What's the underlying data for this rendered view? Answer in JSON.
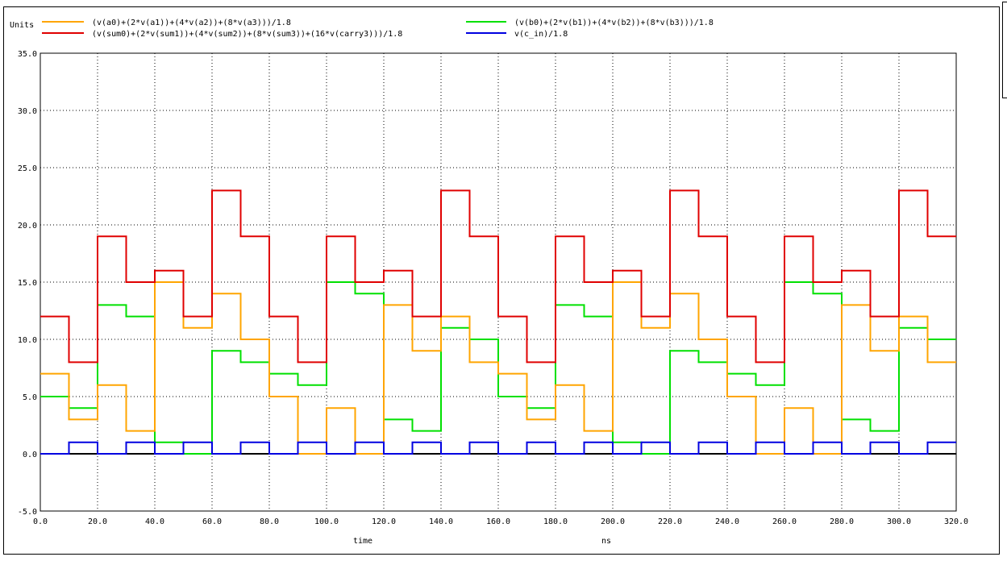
{
  "chart_data": {
    "type": "line",
    "ylabel": "Units",
    "xlabel": "time",
    "xunit": "ns",
    "xlim": [
      0,
      320
    ],
    "ylim": [
      -5,
      35
    ],
    "xticks": [
      0,
      20,
      40,
      60,
      80,
      100,
      120,
      140,
      160,
      180,
      200,
      220,
      240,
      260,
      280,
      300,
      320
    ],
    "xtick_labels": [
      "0.0",
      "20.0",
      "40.0",
      "60.0",
      "80.0",
      "100.0",
      "120.0",
      "140.0",
      "160.0",
      "180.0",
      "200.0",
      "220.0",
      "240.0",
      "260.0",
      "280.0",
      "300.0",
      "320.0"
    ],
    "yticks": [
      -5,
      0,
      5,
      10,
      15,
      20,
      25,
      30,
      35
    ],
    "ytick_labels": [
      "-5.0",
      "0.0",
      "5.0",
      "10.0",
      "15.0",
      "20.0",
      "25.0",
      "30.0",
      "35.0"
    ],
    "grid": true,
    "legend_position": "top",
    "series": [
      {
        "name": "(v(a0)+(2*v(a1))+(4*v(a2))+(8*v(a3)))/1.8",
        "color": "#ffa500",
        "steps": [
          [
            0,
            7
          ],
          [
            10,
            3
          ],
          [
            20,
            6
          ],
          [
            30,
            2
          ],
          [
            40,
            15
          ],
          [
            50,
            11
          ],
          [
            60,
            14
          ],
          [
            70,
            10
          ],
          [
            80,
            5
          ],
          [
            90,
            0
          ],
          [
            100,
            4
          ],
          [
            110,
            0
          ],
          [
            120,
            13
          ],
          [
            130,
            9
          ],
          [
            140,
            12
          ],
          [
            150,
            8
          ],
          [
            160,
            7
          ],
          [
            170,
            3
          ],
          [
            180,
            6
          ],
          [
            190,
            2
          ],
          [
            200,
            15
          ],
          [
            210,
            11
          ],
          [
            220,
            14
          ],
          [
            230,
            10
          ],
          [
            240,
            5
          ],
          [
            250,
            0
          ],
          [
            260,
            4
          ],
          [
            270,
            0
          ],
          [
            280,
            13
          ],
          [
            290,
            9
          ],
          [
            300,
            12
          ],
          [
            310,
            8
          ],
          [
            320,
            8
          ]
        ]
      },
      {
        "name": "(v(b0)+(2*v(b1))+(4*v(b2))+(8*v(b3)))/1.8",
        "color": "#00e000",
        "steps": [
          [
            0,
            5
          ],
          [
            10,
            4
          ],
          [
            20,
            13
          ],
          [
            30,
            12
          ],
          [
            40,
            1
          ],
          [
            50,
            0
          ],
          [
            60,
            9
          ],
          [
            70,
            8
          ],
          [
            80,
            7
          ],
          [
            90,
            6
          ],
          [
            100,
            15
          ],
          [
            110,
            14
          ],
          [
            120,
            3
          ],
          [
            130,
            2
          ],
          [
            140,
            11
          ],
          [
            150,
            10
          ],
          [
            160,
            5
          ],
          [
            170,
            4
          ],
          [
            180,
            13
          ],
          [
            190,
            12
          ],
          [
            200,
            1
          ],
          [
            210,
            0
          ],
          [
            220,
            9
          ],
          [
            230,
            8
          ],
          [
            240,
            7
          ],
          [
            250,
            6
          ],
          [
            260,
            15
          ],
          [
            270,
            14
          ],
          [
            280,
            3
          ],
          [
            290,
            2
          ],
          [
            300,
            11
          ],
          [
            310,
            10
          ],
          [
            320,
            10
          ]
        ]
      },
      {
        "name": "(v(sum0)+(2*v(sum1))+(4*v(sum2))+(8*v(sum3))+(16*v(carry3)))/1.8",
        "color": "#e00000",
        "steps": [
          [
            0,
            12
          ],
          [
            10,
            8
          ],
          [
            20,
            19
          ],
          [
            30,
            15
          ],
          [
            40,
            16
          ],
          [
            50,
            12
          ],
          [
            60,
            23
          ],
          [
            70,
            19
          ],
          [
            80,
            12
          ],
          [
            90,
            8
          ],
          [
            100,
            19
          ],
          [
            110,
            15
          ],
          [
            120,
            16
          ],
          [
            130,
            12
          ],
          [
            140,
            23
          ],
          [
            150,
            19
          ],
          [
            160,
            12
          ],
          [
            170,
            8
          ],
          [
            180,
            19
          ],
          [
            190,
            15
          ],
          [
            200,
            16
          ],
          [
            210,
            12
          ],
          [
            220,
            23
          ],
          [
            230,
            19
          ],
          [
            240,
            12
          ],
          [
            250,
            8
          ],
          [
            260,
            19
          ],
          [
            270,
            15
          ],
          [
            280,
            16
          ],
          [
            290,
            12
          ],
          [
            300,
            23
          ],
          [
            310,
            19
          ],
          [
            320,
            19
          ]
        ]
      },
      {
        "name": "v(c_in)/1.8",
        "color": "#0000e0",
        "steps": [
          [
            0,
            0
          ],
          [
            10,
            1
          ],
          [
            20,
            0
          ],
          [
            30,
            1
          ],
          [
            40,
            0
          ],
          [
            50,
            1
          ],
          [
            60,
            0
          ],
          [
            70,
            1
          ],
          [
            80,
            0
          ],
          [
            90,
            1
          ],
          [
            100,
            0
          ],
          [
            110,
            1
          ],
          [
            120,
            0
          ],
          [
            130,
            1
          ],
          [
            140,
            0
          ],
          [
            150,
            1
          ],
          [
            160,
            0
          ],
          [
            170,
            1
          ],
          [
            180,
            0
          ],
          [
            190,
            1
          ],
          [
            200,
            0
          ],
          [
            210,
            1
          ],
          [
            220,
            0
          ],
          [
            230,
            1
          ],
          [
            240,
            0
          ],
          [
            250,
            1
          ],
          [
            260,
            0
          ],
          [
            270,
            1
          ],
          [
            280,
            0
          ],
          [
            290,
            1
          ],
          [
            300,
            0
          ],
          [
            310,
            1
          ],
          [
            320,
            1
          ]
        ]
      }
    ]
  }
}
